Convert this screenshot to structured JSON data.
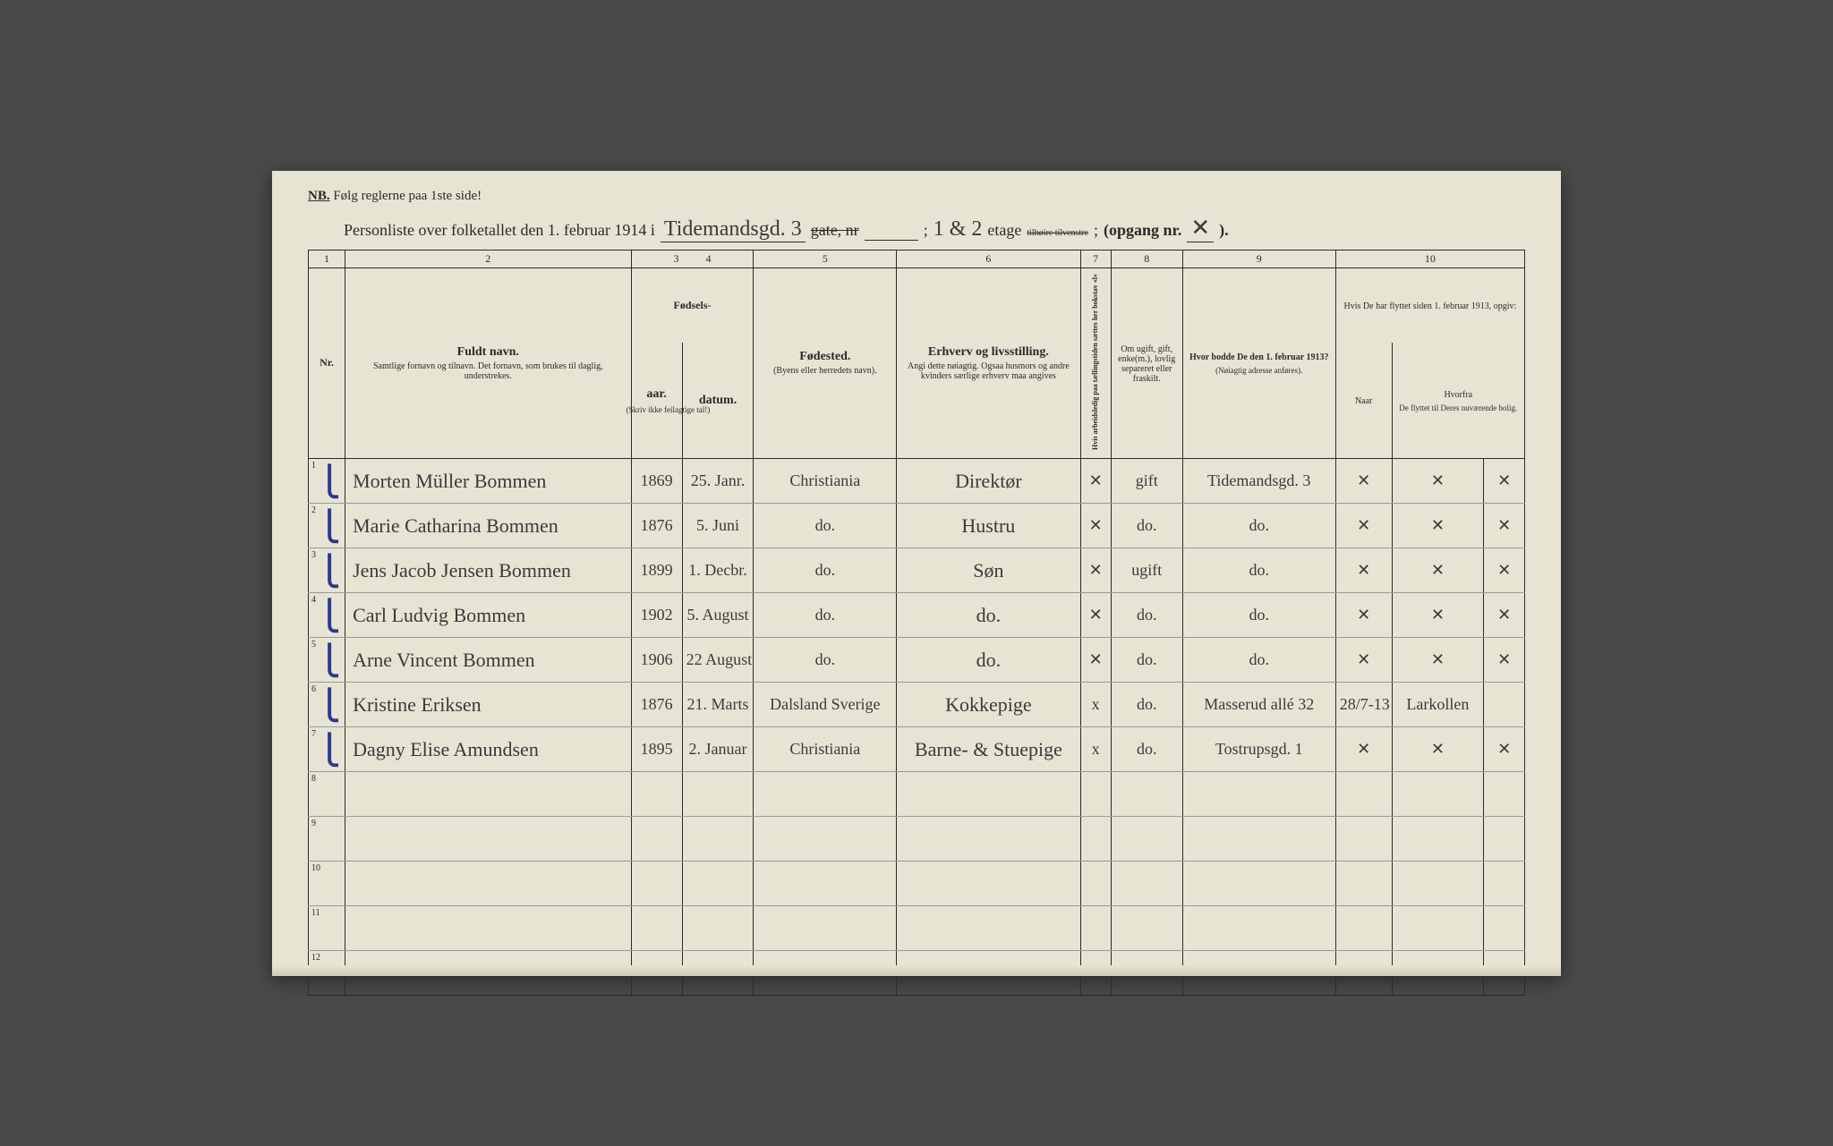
{
  "header": {
    "nb_label": "NB.",
    "nb_text": "Følg reglerne paa 1ste side!",
    "title_prefix": "Personliste over folketallet den 1. februar 1914 i",
    "street_hand": "Tidemandsgd. 3",
    "gate_label": "gate, nr",
    "gate_hand": "",
    "semicolon": ";",
    "etage_hand": "1 & 2",
    "etage_label": "etage",
    "etage_struck": "tilhøire tilvenstre",
    "opgang_label": "(opgang nr.",
    "opgang_hand": "✕",
    "close_paren": ")."
  },
  "columns": {
    "nums": [
      "1",
      "2",
      "3",
      "4",
      "5",
      "6",
      "7",
      "8",
      "9",
      "10"
    ],
    "nr": "Nr.",
    "name_main": "Fuldt navn.",
    "name_sub": "Samtlige fornavn og tilnavn. Det fornavn, som brukes til daglig, understrekes.",
    "birth_group": "Fødsels-",
    "year": "aar.",
    "date": "datum.",
    "year_note": "(Skriv ikke feilagtige tal!)",
    "place_main": "Fødested.",
    "place_sub": "(Byens eller herredets navn).",
    "occ_main": "Erhverv og livsstilling.",
    "occ_sub": "Angi dette nøiagtig. Ogsaa husmors og andre kvinders særlige erhverv maa angives",
    "col7_text": "Hvis arbeidsledig paa tællingstiden sættes her bokstav «l»",
    "col8_main": "Om ugift, gift, enke(m.), lovlig separeret eller fraskilt.",
    "col9_main": "Hvor bodde De den 1. februar 1913?",
    "col9_sub": "(Nøiagtig adresse anføres).",
    "col10_top": "Hvis De har flyttet siden 1. februar 1913, opgiv:",
    "col10a": "Naar",
    "col10b": "Hvorfra",
    "col10_sub": "De flyttet til Deres nuværende bolig."
  },
  "rows": [
    {
      "nr": "1",
      "check": true,
      "name": "Morten Müller Bommen",
      "year": "1869",
      "date": "25. Janr.",
      "place": "Christiania",
      "occ": "Direktør",
      "c7": "✕",
      "c8": "gift",
      "c9": "Tidemandsgd. 3",
      "c10a": "✕",
      "c10b": "✕",
      "c10c": "✕"
    },
    {
      "nr": "2",
      "check": true,
      "name": "Marie Catharina Bommen",
      "year": "1876",
      "date": "5. Juni",
      "place": "do.",
      "occ": "Hustru",
      "c7": "✕",
      "c8": "do.",
      "c9": "do.",
      "c10a": "✕",
      "c10b": "✕",
      "c10c": "✕"
    },
    {
      "nr": "3",
      "check": true,
      "name": "Jens Jacob Jensen Bommen",
      "year": "1899",
      "date": "1. Decbr.",
      "place": "do.",
      "occ": "Søn",
      "c7": "✕",
      "c8": "ugift",
      "c9": "do.",
      "c10a": "✕",
      "c10b": "✕",
      "c10c": "✕"
    },
    {
      "nr": "4",
      "check": true,
      "name": "Carl Ludvig Bommen",
      "year": "1902",
      "date": "5. August",
      "place": "do.",
      "occ": "do.",
      "c7": "✕",
      "c8": "do.",
      "c9": "do.",
      "c10a": "✕",
      "c10b": "✕",
      "c10c": "✕"
    },
    {
      "nr": "5",
      "check": true,
      "name": "Arne Vincent Bommen",
      "year": "1906",
      "date": "22 August",
      "place": "do.",
      "occ": "do.",
      "c7": "✕",
      "c8": "do.",
      "c9": "do.",
      "c10a": "✕",
      "c10b": "✕",
      "c10c": "✕"
    },
    {
      "nr": "6",
      "check": true,
      "name": "Kristine Eriksen",
      "year": "1876",
      "date": "21. Marts",
      "place": "Dalsland Sverige",
      "occ": "Kokkepige",
      "c7": "x",
      "c8": "do.",
      "c9": "Masserud allé 32",
      "c10a": "28/7-13",
      "c10b": "Larkollen",
      "c10c": ""
    },
    {
      "nr": "7",
      "check": true,
      "name": "Dagny Elise Amundsen",
      "year": "1895",
      "date": "2. Januar",
      "place": "Christiania",
      "occ": "Barne- & Stuepige",
      "c7": "x",
      "c8": "do.",
      "c9": "Tostrupsgd. 1",
      "c10a": "✕",
      "c10b": "✕",
      "c10c": "✕"
    },
    {
      "nr": "8",
      "check": false,
      "name": "",
      "year": "",
      "date": "",
      "place": "",
      "occ": "",
      "c7": "",
      "c8": "",
      "c9": "",
      "c10a": "",
      "c10b": "",
      "c10c": ""
    },
    {
      "nr": "9",
      "check": false,
      "name": "",
      "year": "",
      "date": "",
      "place": "",
      "occ": "",
      "c7": "",
      "c8": "",
      "c9": "",
      "c10a": "",
      "c10b": "",
      "c10c": ""
    },
    {
      "nr": "10",
      "check": false,
      "name": "",
      "year": "",
      "date": "",
      "place": "",
      "occ": "",
      "c7": "",
      "c8": "",
      "c9": "",
      "c10a": "",
      "c10b": "",
      "c10c": ""
    },
    {
      "nr": "11",
      "check": false,
      "name": "",
      "year": "",
      "date": "",
      "place": "",
      "occ": "",
      "c7": "",
      "c8": "",
      "c9": "",
      "c10a": "",
      "c10b": "",
      "c10c": ""
    },
    {
      "nr": "12",
      "check": false,
      "name": "",
      "year": "",
      "date": "",
      "place": "",
      "occ": "",
      "c7": "",
      "c8": "",
      "c9": "",
      "c10a": "",
      "c10b": "",
      "c10c": ""
    }
  ],
  "colors": {
    "paper": "#e8e4d4",
    "ink": "#2a2a2a",
    "hand_ink": "#3a3a3a",
    "blue_check": "#2b3a8f",
    "background": "#4a4a4a"
  }
}
